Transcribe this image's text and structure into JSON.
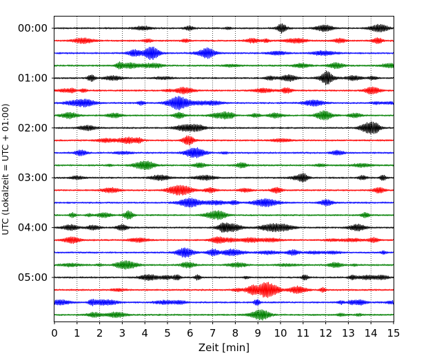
{
  "chart_data": {
    "type": "line",
    "title": "",
    "xlabel": "Zeit  [min]",
    "ylabel": "UTC (Lokalzeit = UTC + 01:00)",
    "xlim": [
      0,
      15
    ],
    "x_ticks": [
      "0",
      "1",
      "2",
      "3",
      "4",
      "5",
      "6",
      "7",
      "8",
      "9",
      "10",
      "11",
      "12",
      "13",
      "14",
      "15"
    ],
    "y_ticks": [
      "00:00",
      "01:00",
      "02:00",
      "03:00",
      "04:00",
      "05:00"
    ],
    "grid": "vertical dotted at each minute",
    "trace_interval_minutes": 15,
    "trace_color_cycle": [
      "#000000",
      "#ff0000",
      "#0000ff",
      "#008000"
    ],
    "series": [
      {
        "start": "00:00",
        "color": "#000000"
      },
      {
        "start": "00:15",
        "color": "#ff0000"
      },
      {
        "start": "00:30",
        "color": "#0000ff"
      },
      {
        "start": "00:45",
        "color": "#008000"
      },
      {
        "start": "01:00",
        "color": "#000000"
      },
      {
        "start": "01:15",
        "color": "#ff0000"
      },
      {
        "start": "01:30",
        "color": "#0000ff"
      },
      {
        "start": "01:45",
        "color": "#008000"
      },
      {
        "start": "02:00",
        "color": "#000000"
      },
      {
        "start": "02:15",
        "color": "#ff0000"
      },
      {
        "start": "02:30",
        "color": "#0000ff"
      },
      {
        "start": "02:45",
        "color": "#008000"
      },
      {
        "start": "03:00",
        "color": "#000000"
      },
      {
        "start": "03:15",
        "color": "#ff0000"
      },
      {
        "start": "03:30",
        "color": "#0000ff"
      },
      {
        "start": "03:45",
        "color": "#008000"
      },
      {
        "start": "04:00",
        "color": "#000000"
      },
      {
        "start": "04:15",
        "color": "#ff0000"
      },
      {
        "start": "04:30",
        "color": "#0000ff"
      },
      {
        "start": "04:45",
        "color": "#008000"
      },
      {
        "start": "05:00",
        "color": "#000000"
      },
      {
        "start": "05:15",
        "color": "#ff0000"
      },
      {
        "start": "05:30",
        "color": "#0000ff"
      },
      {
        "start": "05:45",
        "color": "#008000"
      }
    ]
  }
}
